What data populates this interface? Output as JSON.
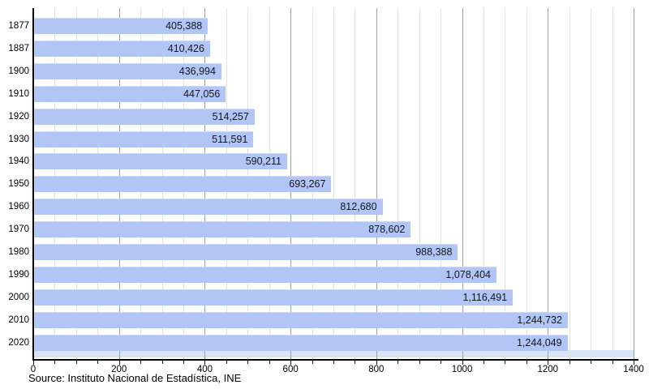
{
  "source_note": "Source: Instituto Nacional de Estadística, INE",
  "colors": {
    "bar_fill": "#b1c6f5",
    "bar_label": "#14161f",
    "baseline_band": "#d9e3f8",
    "grid_minor": "#e2e2e2",
    "grid_major": "#9f9f9f",
    "axis": "#000000",
    "text": "#000000",
    "background": "#ffffff"
  },
  "chart_data": {
    "type": "bar",
    "orientation": "horizontal",
    "title": "",
    "xlabel": "",
    "ylabel": "",
    "legend": "none",
    "grid": "vertical",
    "categories": [
      "1877",
      "1887",
      "1900",
      "1910",
      "1920",
      "1930",
      "1940",
      "1950",
      "1960",
      "1970",
      "1980",
      "1990",
      "2000",
      "2010",
      "2020"
    ],
    "values": [
      405388,
      410426,
      436994,
      447056,
      514257,
      511591,
      590211,
      693267,
      812680,
      878602,
      988388,
      1078404,
      1116491,
      1244732,
      1244049
    ],
    "value_labels": [
      "405,388",
      "410,426",
      "436,994",
      "447,056",
      "514,257",
      "511,591",
      "590,211",
      "693,267",
      "812,680",
      "878,602",
      "988,388",
      "1,078,404",
      "1,116,491",
      "1,244,732",
      "1,244,049"
    ],
    "x_axis": {
      "min": 0,
      "max": 1400,
      "unit": "thousands of persons",
      "value_divisor": 1000,
      "minor_step": 50,
      "major_step": 200,
      "tick_labels": [
        "0",
        "200",
        "400",
        "600",
        "800",
        "1000",
        "1200",
        "1400"
      ]
    }
  }
}
